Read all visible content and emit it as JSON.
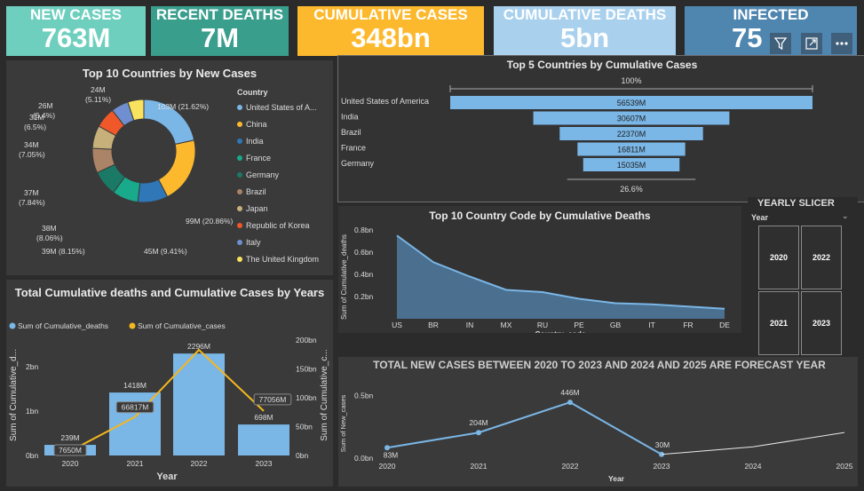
{
  "kpis": [
    {
      "label": "NEW CASES",
      "value": "763M"
    },
    {
      "label": "RECENT DEATHS",
      "value": "7M"
    },
    {
      "label": "CUMULATIVE CASES",
      "value": "348bn"
    },
    {
      "label": "CUMULATIVE DEATHS",
      "value": "5bn"
    },
    {
      "label": "INFECTED",
      "value": "75"
    }
  ],
  "colors": {
    "kpi1": "#6fcfbe",
    "kpi2": "#3a9e8d",
    "kpi3": "#fdb92e",
    "kpi4": "#a9d1ee",
    "kpi5": "#4f86b0",
    "bar": "#7ab6e6",
    "line": "#f5b71f"
  },
  "donut": {
    "title": "Top 10 Countries by New Cases",
    "legend_title": "Country",
    "slices": [
      {
        "name": "United States of A...",
        "value": 103,
        "label": "103M (21.62%)",
        "color": "#7ab6e6"
      },
      {
        "name": "China",
        "value": 99,
        "label": "99M (20.86%)",
        "color": "#fdb92e"
      },
      {
        "name": "India",
        "value": 45,
        "label": "45M (9.41%)",
        "color": "#2f77b6"
      },
      {
        "name": "France",
        "value": 39,
        "label": "39M (8.15%)",
        "color": "#19a98b"
      },
      {
        "name": "Germany",
        "value": 38,
        "label": "38M (8.06%)",
        "color": "#1a7a66"
      },
      {
        "name": "Brazil",
        "value": 37,
        "label": "37M (7.84%)",
        "color": "#ab8366"
      },
      {
        "name": "Japan",
        "value": 34,
        "label": "34M (7.05%)",
        "color": "#c8b07a"
      },
      {
        "name": "Republic of Korea",
        "value": 31,
        "label": "31M (6.5%)",
        "color": "#f0582a"
      },
      {
        "name": "Italy",
        "value": 26,
        "label": "26M (5.4%)",
        "color": "#6f8fd0"
      },
      {
        "name": "The United Kingdom",
        "value": 24,
        "label": "24M (5.11%)",
        "color": "#f9e35e"
      }
    ]
  },
  "funnel": {
    "title": "Top 5 Countries by Cumulative Cases",
    "top_label": "100%",
    "bottom_label": "26.6%",
    "rows": [
      {
        "name": "United States of America",
        "value": 56539,
        "label": "56539M"
      },
      {
        "name": "India",
        "value": 30607,
        "label": "30607M"
      },
      {
        "name": "Brazil",
        "value": 22370,
        "label": "22370M"
      },
      {
        "name": "France",
        "value": 16811,
        "label": "16811M"
      },
      {
        "name": "Germany",
        "value": 15035,
        "label": "15035M"
      }
    ]
  },
  "area": {
    "title": "Top 10 Country Code by Cumulative Deaths",
    "xlabel": "Country_code",
    "ylabel": "Sum of Cumulative_deaths",
    "yticks": [
      "0.8bn",
      "0.6bn",
      "0.4bn",
      "0.2bn"
    ],
    "categories": [
      "US",
      "BR",
      "IN",
      "MX",
      "RU",
      "PE",
      "GB",
      "IT",
      "FR",
      "DE"
    ],
    "values": [
      0.75,
      0.51,
      0.38,
      0.26,
      0.24,
      0.18,
      0.14,
      0.13,
      0.11,
      0.09
    ],
    "ymax": 0.8
  },
  "slicer": {
    "title": "YEARLY SLICER",
    "header": "Year",
    "years": [
      "2020",
      "2022",
      "2021",
      "2023"
    ]
  },
  "combo": {
    "title": "Total Cumulative deaths and Cumulative Cases by Years",
    "legend": [
      "Sum of Cumulative_deaths",
      "Sum of Cumulative_cases"
    ],
    "ylabel_left": "Sum of Cumulative_d...",
    "ylabel_right": "Sum of Cumulative_c...",
    "xlabel": "Year",
    "left_ticks": [
      "2bn",
      "1bn",
      "0bn"
    ],
    "right_ticks": [
      "200bn",
      "150bn",
      "100bn",
      "50bn",
      "0bn"
    ],
    "categories": [
      "2020",
      "2021",
      "2022",
      "2023"
    ],
    "bar_values": [
      0.239,
      1.418,
      2.296,
      0.698
    ],
    "bar_labels": [
      "239M",
      "1418M",
      "2296M",
      "698M"
    ],
    "line_values": [
      7.65,
      66.817,
      183,
      77.056
    ],
    "line_labels": [
      "7650M",
      "66817M",
      "",
      "77056M"
    ],
    "left_max": 2.6,
    "right_max": 200
  },
  "forecast": {
    "title": "TOTAL NEW CASES BETWEEN 2020 TO 2023 AND 2024 AND 2025 ARE FORECAST YEAR",
    "ylabel": "Sum of New_cases",
    "xlabel": "Year",
    "yticks": [
      "0.5bn",
      "0.0bn"
    ],
    "categories": [
      "2020",
      "2021",
      "2022",
      "2023",
      "2024",
      "2025"
    ],
    "actual": [
      83,
      204,
      446,
      30
    ],
    "actual_labels": [
      "83M",
      "204M",
      "446M",
      "30M"
    ],
    "forecast": [
      30,
      90,
      205
    ],
    "ymax": 560
  }
}
